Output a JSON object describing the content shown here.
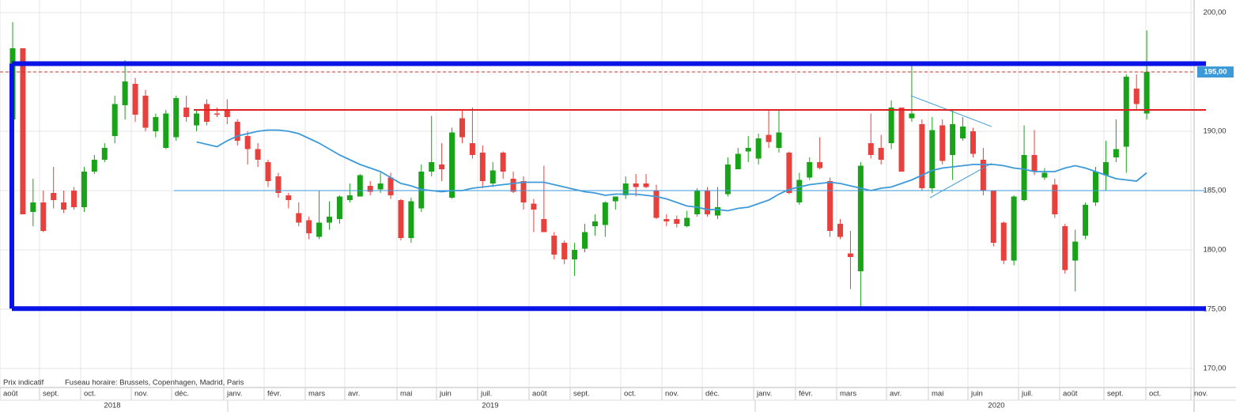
{
  "chart_data": {
    "type": "candlestick",
    "note_left": "Prix indicatif",
    "note_right": "Fuseau horaire: Brussels, Copenhagen, Madrid, Paris",
    "months": [
      "août",
      "sept.",
      "oct.",
      "nov.",
      "déc.",
      "janv.",
      "févr.",
      "mars",
      "avr.",
      "mai",
      "juin",
      "juil.",
      "août",
      "sept.",
      "oct.",
      "nov.",
      "déc.",
      "janv.",
      "févr.",
      "mars",
      "avr.",
      "mai",
      "juin",
      "juil.",
      "août",
      "sept.",
      "oct.",
      "nov."
    ],
    "years": [
      "2018",
      "2019",
      "2020"
    ],
    "ylim": [
      168.4,
      201.07
    ],
    "yticks": [
      {
        "value": 170,
        "label": "170,00"
      },
      {
        "value": 175,
        "label": "175,00"
      },
      {
        "value": 180,
        "label": "180,00"
      },
      {
        "value": 185,
        "label": "185,00"
      },
      {
        "value": 190,
        "label": "190,00"
      },
      {
        "value": 195,
        "label": "195,00"
      },
      {
        "value": 200,
        "label": "200,00"
      }
    ],
    "grid": true,
    "up_color": "#19a319",
    "down_color": "#e8403c",
    "candles": [
      [
        191,
        199.2,
        186.5,
        197
      ],
      [
        197,
        197,
        183,
        183
      ],
      [
        183.2,
        186,
        182,
        184
      ],
      [
        184,
        185,
        181.5,
        181.6
      ],
      [
        184.8,
        187,
        183.5,
        184.2
      ],
      [
        184,
        185,
        183.1,
        183.4
      ],
      [
        185,
        185.3,
        183.4,
        183.6
      ],
      [
        183.6,
        187,
        183.2,
        186.6
      ],
      [
        186.6,
        188,
        186.4,
        187.6
      ],
      [
        187.6,
        189,
        187.4,
        188.6
      ],
      [
        189.6,
        193,
        189,
        192.3
      ],
      [
        192.2,
        196,
        191,
        194.2
      ],
      [
        194,
        194.5,
        190.8,
        191.4
      ],
      [
        193,
        193.5,
        190,
        190.3
      ],
      [
        190,
        191.5,
        189.5,
        191.2
      ],
      [
        188.6,
        191.8,
        188.5,
        191.5
      ],
      [
        189.5,
        193,
        189.2,
        192.8
      ],
      [
        192,
        193,
        190.8,
        191.2
      ],
      [
        190.5,
        191.8,
        190,
        191.5
      ],
      [
        192.3,
        192.7,
        190.5,
        190.8
      ],
      [
        191.5,
        192,
        191.2,
        191.4
      ],
      [
        191.8,
        192.7,
        190.6,
        191.2
      ],
      [
        190.8,
        191,
        188.8,
        189.2
      ],
      [
        189.6,
        190,
        187.2,
        188.5
      ],
      [
        188.5,
        189,
        187,
        187.6
      ],
      [
        187.4,
        187.6,
        185.3,
        185.8
      ],
      [
        186.2,
        186.5,
        184.4,
        184.8
      ],
      [
        184.6,
        184.8,
        183.5,
        184.2
      ],
      [
        183.1,
        184,
        182,
        182.3
      ],
      [
        182.5,
        182.8,
        180.9,
        181.4
      ],
      [
        181.1,
        185,
        180.9,
        182.3
      ],
      [
        182.3,
        184.1,
        181.7,
        182.8
      ],
      [
        182.6,
        184.6,
        182.2,
        184.5
      ],
      [
        184.2,
        185.6,
        184,
        184.6
      ],
      [
        184.5,
        186.4,
        184.5,
        186.3
      ],
      [
        185.4,
        185.8,
        184.6,
        184.9
      ],
      [
        185.1,
        186.5,
        184.8,
        185.6
      ],
      [
        186.1,
        186.5,
        184.3,
        184.6
      ],
      [
        184.2,
        184.3,
        180.8,
        181
      ],
      [
        181,
        184.4,
        180.6,
        184.1
      ],
      [
        183.5,
        187.2,
        183.2,
        186.6
      ],
      [
        186.6,
        191.3,
        186.2,
        187.4
      ],
      [
        187.2,
        189,
        185.8,
        186.8
      ],
      [
        184.4,
        190.3,
        184.3,
        189.9
      ],
      [
        191.1,
        191.8,
        189,
        189.5
      ],
      [
        189,
        192,
        187.7,
        188
      ],
      [
        188.2,
        188.8,
        185.2,
        185.8
      ],
      [
        185.6,
        187.4,
        185.3,
        186.7
      ],
      [
        188.2,
        188.3,
        186,
        186.6
      ],
      [
        186,
        186.6,
        184.8,
        184.9
      ],
      [
        185.8,
        186.2,
        183.4,
        184
      ],
      [
        183.9,
        184.3,
        181.5,
        183.4
      ],
      [
        182.6,
        187.1,
        181.5,
        181.5
      ],
      [
        181.2,
        181.5,
        179.2,
        179.6
      ],
      [
        180.6,
        180.8,
        178.8,
        179.2
      ],
      [
        179.2,
        180.6,
        177.8,
        180
      ],
      [
        180.1,
        182.2,
        179.8,
        181.5
      ],
      [
        182,
        183,
        181.2,
        182.4
      ],
      [
        182.1,
        184.1,
        181.1,
        184
      ],
      [
        184.1,
        184.5,
        183.4,
        184.5
      ],
      [
        184.6,
        186.2,
        184.3,
        185.6
      ],
      [
        185.6,
        186.4,
        184.5,
        185.3
      ],
      [
        185.6,
        186.4,
        185.2,
        185.3
      ],
      [
        185,
        185.5,
        182.6,
        182.7
      ],
      [
        182.6,
        183,
        182,
        182.4
      ],
      [
        182.6,
        182.9,
        181.9,
        182.2
      ],
      [
        182,
        183.3,
        181.9,
        182.7
      ],
      [
        183,
        185.2,
        182.8,
        185
      ],
      [
        185,
        185.3,
        182.8,
        183
      ],
      [
        182.9,
        185.3,
        182.6,
        183.6
      ],
      [
        184.7,
        187.8,
        184.5,
        187.2
      ],
      [
        186.8,
        188.6,
        186.8,
        188.1
      ],
      [
        188.3,
        189.6,
        187.4,
        188.6
      ],
      [
        187.7,
        189.8,
        187.2,
        189.4
      ],
      [
        189.7,
        191.8,
        188.6,
        189.1
      ],
      [
        188.6,
        191.8,
        188.2,
        189.9
      ],
      [
        188.2,
        188.3,
        184.7,
        184.8
      ],
      [
        184,
        186.5,
        183.8,
        185.9
      ],
      [
        186.1,
        187.8,
        185.9,
        187.4
      ],
      [
        187.4,
        189.5,
        186.8,
        186.9
      ],
      [
        185.8,
        186.1,
        181.1,
        181.6
      ],
      [
        182.2,
        182.6,
        180.9,
        181.1
      ],
      [
        179.7,
        181.6,
        176.7,
        179.4
      ],
      [
        178.2,
        187.4,
        175.2,
        187.1
      ],
      [
        189,
        191.5,
        187.7,
        188
      ],
      [
        188.6,
        189.7,
        187.2,
        187.6
      ],
      [
        189,
        192.6,
        188.5,
        192
      ],
      [
        192,
        192,
        186.6,
        186.6
      ],
      [
        191.1,
        195.7,
        190.8,
        191.5
      ],
      [
        190.6,
        191,
        185,
        185.2
      ],
      [
        185.2,
        191.2,
        184.8,
        190.1
      ],
      [
        190.5,
        191,
        187.2,
        187.5
      ],
      [
        188,
        191.8,
        185.9,
        190.6
      ],
      [
        189.4,
        191.2,
        189.2,
        190.4
      ],
      [
        190,
        190.3,
        187.8,
        188.1
      ],
      [
        187.6,
        188.6,
        184.6,
        185
      ],
      [
        185,
        185,
        180.3,
        180.6
      ],
      [
        182.3,
        182.4,
        178.8,
        179.1
      ],
      [
        179.1,
        184.6,
        178.7,
        184.5
      ],
      [
        184.2,
        190.5,
        184.1,
        188
      ],
      [
        188,
        190.1,
        186.3,
        186.6
      ],
      [
        186.1,
        186.9,
        185.9,
        186.5
      ],
      [
        185.5,
        186,
        182.7,
        183
      ],
      [
        182,
        182.2,
        178,
        178.3
      ],
      [
        179.1,
        181.7,
        176.5,
        180.7
      ],
      [
        181.2,
        184,
        180.9,
        183.8
      ],
      [
        184,
        187,
        183.7,
        186.6
      ],
      [
        186.3,
        189.2,
        185,
        187.4
      ],
      [
        187.8,
        191,
        187.4,
        188.5
      ],
      [
        188.7,
        194.8,
        186.5,
        194.6
      ],
      [
        193.6,
        194.8,
        191.8,
        192.3
      ],
      [
        191.5,
        198.5,
        191,
        195
      ]
    ],
    "moving_average": {
      "color": "#3d9ad9",
      "values": [
        null,
        null,
        null,
        null,
        null,
        null,
        null,
        null,
        null,
        null,
        null,
        null,
        null,
        null,
        null,
        null,
        null,
        null,
        189.1,
        188.9,
        188.7,
        189.2,
        189.6,
        189.8,
        190,
        190.1,
        190.1,
        190,
        189.8,
        189.4,
        189,
        188.5,
        188,
        187.6,
        187.2,
        186.9,
        186.6,
        186.1,
        185.6,
        185.4,
        185.1,
        185,
        184.9,
        185,
        185,
        185.2,
        185.3,
        185.4,
        185.5,
        185.6,
        185.7,
        185.7,
        185.7,
        185.5,
        185.3,
        185.1,
        184.9,
        184.8,
        184.6,
        184.7,
        184.7,
        184.7,
        184.6,
        184.5,
        184.3,
        184,
        183.7,
        183.6,
        183.4,
        183.4,
        183.3,
        183.5,
        183.6,
        183.9,
        184.2,
        184.7,
        185.1,
        185.3,
        185.5,
        185.6,
        185.7,
        185.6,
        185.4,
        185.2,
        185,
        185.2,
        185.3,
        185.6,
        185.9,
        186.3,
        186.7,
        186.9,
        187,
        187.1,
        187.2,
        187.2,
        187.2,
        187.1,
        186.9,
        186.8,
        186.6,
        186.6,
        186.6,
        186.9,
        187.1,
        186.9,
        186.6,
        186.3,
        186,
        185.9,
        185.8,
        186.5
      ]
    },
    "range_box": {
      "color": "#0a14e6",
      "low": 175.05,
      "high": 195.7
    },
    "red_level": {
      "color": "#e02020",
      "value": 191.8
    },
    "blue_level": {
      "color": "#3d9ad9",
      "value": 185
    },
    "price_marker": {
      "value": 195,
      "label": "195,00",
      "color": "#3d9ad9"
    }
  }
}
